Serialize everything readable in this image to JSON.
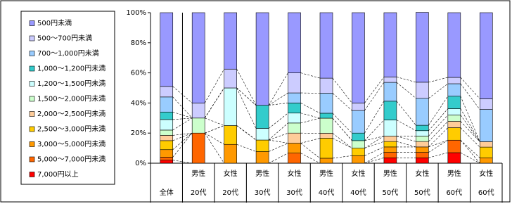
{
  "chart_data": {
    "type": "stacked-bar-100",
    "categories": [
      [
        "全体"
      ],
      [
        "男性",
        "20代"
      ],
      [
        "女性",
        "20代"
      ],
      [
        "男性",
        "30代"
      ],
      [
        "女性",
        "30代"
      ],
      [
        "男性",
        "40代"
      ],
      [
        "女性",
        "40代"
      ],
      [
        "男性",
        "50代"
      ],
      [
        "女性",
        "50代"
      ],
      [
        "男性",
        "60代"
      ],
      [
        "女性",
        "60代"
      ]
    ],
    "ylim": [
      0,
      100
    ],
    "yticks": [
      {
        "value": 0,
        "label": "0%"
      },
      {
        "value": 20,
        "label": "20%"
      },
      {
        "value": 40,
        "label": "40%"
      },
      {
        "value": 60,
        "label": "60%"
      },
      {
        "value": 80,
        "label": "80%"
      },
      {
        "value": 100,
        "label": "100%"
      }
    ],
    "series": [
      {
        "name": "7,000円以上",
        "color": "#ff0000",
        "values": [
          2,
          0,
          0,
          0,
          0,
          0,
          0,
          3.6,
          3.6,
          7,
          0
        ]
      },
      {
        "name": "5,000～7,000円未満",
        "color": "#ff6600",
        "values": [
          2,
          20,
          0,
          0,
          6.7,
          0,
          0,
          3.6,
          3.6,
          8.3,
          0
        ]
      },
      {
        "name": "3,000～5,000円未満",
        "color": "#ff9900",
        "values": [
          5,
          0,
          12.5,
          7.7,
          6.6,
          3.3,
          5,
          3.6,
          3.6,
          0,
          3.6
        ]
      },
      {
        "name": "2,500～3,000円未満",
        "color": "#ffcc00",
        "values": [
          6,
          0,
          12.5,
          7.7,
          0,
          13.3,
          5,
          3.6,
          0,
          8.3,
          7.1
        ]
      },
      {
        "name": "2,000～2,500円未満",
        "color": "#ffcc99",
        "values": [
          3.5,
          0,
          0,
          0,
          6.7,
          3.3,
          0,
          3.6,
          3.6,
          4.2,
          3.6
        ]
      },
      {
        "name": "1,500～2,000円未満",
        "color": "#ccffcc",
        "values": [
          3.5,
          10,
          0,
          0,
          6.7,
          10,
          5,
          0,
          3.6,
          4.2,
          0
        ]
      },
      {
        "name": "1,200～1,500円未満",
        "color": "#ccffff",
        "values": [
          7,
          0,
          25,
          7.7,
          6.6,
          0,
          0,
          10.7,
          3.6,
          4.2,
          0
        ]
      },
      {
        "name": "1,000～1,200円未満",
        "color": "#33cccc",
        "values": [
          5,
          0,
          0,
          15.4,
          6.7,
          3.3,
          5,
          12.5,
          3.6,
          8.3,
          0
        ]
      },
      {
        "name": "700～1,000円未満",
        "color": "#99ccff",
        "values": [
          10,
          0,
          0,
          0,
          6.7,
          13.3,
          15,
          12.5,
          17.9,
          8.3,
          21.4
        ]
      },
      {
        "name": "500～700円未満",
        "color": "#ccccff",
        "values": [
          7,
          10,
          12.5,
          0,
          13.3,
          10,
          5,
          3.6,
          10.7,
          4.2,
          7.1
        ]
      },
      {
        "name": "500円未満",
        "color": "#9999ff",
        "values": [
          49,
          60,
          37.5,
          61.5,
          40,
          43.5,
          60,
          42.7,
          46.4,
          43,
          57.2
        ]
      }
    ]
  }
}
